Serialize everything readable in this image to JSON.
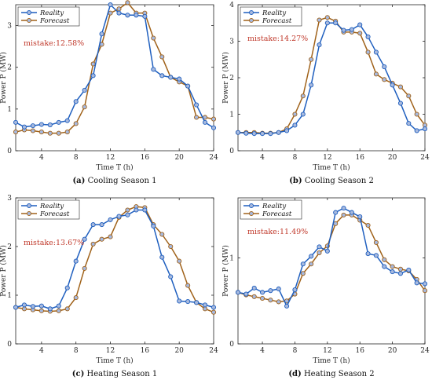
{
  "colors": {
    "reality": "#1f5fbf",
    "forecast": "#a0621a",
    "annotation": "#c0392b"
  },
  "legend": {
    "reality": "Reality",
    "forecast": "Forecast"
  },
  "chart_data": [
    {
      "type": "line",
      "panel": "(a)",
      "caption": "Cooling Season 1",
      "annotation": "mistake:12.58%",
      "xlabel": "Time T (h)",
      "ylabel": "Power P (MW)",
      "xlim": [
        1,
        24
      ],
      "ylim": [
        0,
        3.5
      ],
      "xticks": [
        4,
        8,
        12,
        16,
        20,
        24
      ],
      "yticks": [
        0,
        1,
        2,
        3
      ],
      "x": [
        1,
        2,
        3,
        4,
        5,
        6,
        7,
        8,
        9,
        10,
        11,
        12,
        13,
        14,
        15,
        16,
        17,
        18,
        19,
        20,
        21,
        22,
        23,
        24
      ],
      "series": [
        {
          "name": "Reality",
          "values": [
            0.68,
            0.57,
            0.6,
            0.63,
            0.62,
            0.68,
            0.72,
            1.18,
            1.45,
            1.8,
            2.8,
            3.5,
            3.3,
            3.25,
            3.25,
            3.22,
            1.95,
            1.8,
            1.76,
            1.72,
            1.55,
            1.1,
            0.68,
            0.55
          ]
        },
        {
          "name": "Forecast",
          "values": [
            0.45,
            0.5,
            0.48,
            0.45,
            0.42,
            0.42,
            0.45,
            0.65,
            1.05,
            2.08,
            2.55,
            3.3,
            3.4,
            3.55,
            3.3,
            3.3,
            2.7,
            2.25,
            1.76,
            1.65,
            1.55,
            0.8,
            0.8,
            0.76
          ]
        }
      ]
    },
    {
      "type": "line",
      "panel": "(b)",
      "caption": "Cooling Season 2",
      "annotation": "mistake:14.27%",
      "xlabel": "Time T (h)",
      "ylabel": "Power P (MW)",
      "xlim": [
        1,
        24
      ],
      "ylim": [
        0,
        4
      ],
      "xticks": [
        4,
        8,
        12,
        16,
        20,
        24
      ],
      "yticks": [
        0,
        1,
        2,
        3,
        4
      ],
      "x": [
        1,
        2,
        3,
        4,
        5,
        6,
        7,
        8,
        9,
        10,
        11,
        12,
        13,
        14,
        15,
        16,
        17,
        18,
        19,
        20,
        21,
        22,
        23,
        24
      ],
      "series": [
        {
          "name": "Reality",
          "values": [
            0.5,
            0.48,
            0.47,
            0.47,
            0.47,
            0.5,
            0.55,
            0.7,
            1.0,
            1.8,
            2.9,
            3.5,
            3.5,
            3.3,
            3.32,
            3.45,
            3.12,
            2.7,
            2.3,
            1.8,
            1.3,
            0.75,
            0.55,
            0.6
          ]
        },
        {
          "name": "Forecast",
          "values": [
            0.5,
            0.5,
            0.5,
            0.48,
            0.48,
            0.5,
            0.6,
            1.0,
            1.5,
            2.5,
            3.58,
            3.65,
            3.55,
            3.25,
            3.25,
            3.22,
            2.7,
            2.1,
            1.95,
            1.85,
            1.75,
            1.5,
            1.0,
            0.7
          ]
        }
      ]
    },
    {
      "type": "line",
      "panel": "(c)",
      "caption": "Heating Season 1",
      "annotation": "mistake:13.67%",
      "xlabel": "Time T (h)",
      "ylabel": "Power P (MW)",
      "xlim": [
        1,
        24
      ],
      "ylim": [
        0,
        3
      ],
      "xticks": [
        4,
        8,
        12,
        16,
        20,
        24
      ],
      "yticks": [
        0,
        1,
        2,
        3
      ],
      "x": [
        1,
        2,
        3,
        4,
        5,
        6,
        7,
        8,
        9,
        10,
        11,
        12,
        13,
        14,
        15,
        16,
        17,
        18,
        19,
        20,
        21,
        22,
        23,
        24
      ],
      "series": [
        {
          "name": "Reality",
          "values": [
            0.75,
            0.8,
            0.77,
            0.78,
            0.72,
            0.78,
            1.15,
            1.7,
            2.15,
            2.45,
            2.45,
            2.55,
            2.62,
            2.65,
            2.75,
            2.75,
            2.42,
            1.78,
            1.38,
            0.88,
            0.87,
            0.85,
            0.8,
            0.75
          ]
        },
        {
          "name": "Forecast",
          "values": [
            0.75,
            0.72,
            0.7,
            0.68,
            0.67,
            0.68,
            0.72,
            0.95,
            1.55,
            2.05,
            2.15,
            2.2,
            2.6,
            2.75,
            2.82,
            2.8,
            2.45,
            2.25,
            2.0,
            1.7,
            1.2,
            0.85,
            0.72,
            0.65
          ]
        }
      ]
    },
    {
      "type": "line",
      "panel": "(d)",
      "caption": "Heating Season 2",
      "annotation": "mistake:11.49%",
      "xlabel": "Time T (h)",
      "ylabel": "Power P (MW)",
      "xlim": [
        1,
        24
      ],
      "ylim": [
        0,
        1.7
      ],
      "xticks": [
        4,
        8,
        12,
        16,
        20,
        24
      ],
      "yticks": [
        0,
        1
      ],
      "x": [
        1,
        2,
        3,
        4,
        5,
        6,
        7,
        8,
        9,
        10,
        11,
        12,
        13,
        14,
        15,
        16,
        17,
        18,
        19,
        20,
        21,
        22,
        23,
        24
      ],
      "series": [
        {
          "name": "Reality",
          "values": [
            0.6,
            0.58,
            0.65,
            0.6,
            0.62,
            0.64,
            0.44,
            0.63,
            0.93,
            1.02,
            1.13,
            1.08,
            1.53,
            1.58,
            1.53,
            1.48,
            1.05,
            1.03,
            0.9,
            0.84,
            0.82,
            0.86,
            0.71,
            0.7
          ]
        },
        {
          "name": "Forecast",
          "values": [
            0.6,
            0.57,
            0.55,
            0.53,
            0.51,
            0.49,
            0.5,
            0.58,
            0.82,
            0.93,
            1.06,
            1.14,
            1.4,
            1.5,
            1.5,
            1.44,
            1.38,
            1.18,
            0.98,
            0.9,
            0.87,
            0.85,
            0.75,
            0.62
          ]
        }
      ]
    }
  ]
}
